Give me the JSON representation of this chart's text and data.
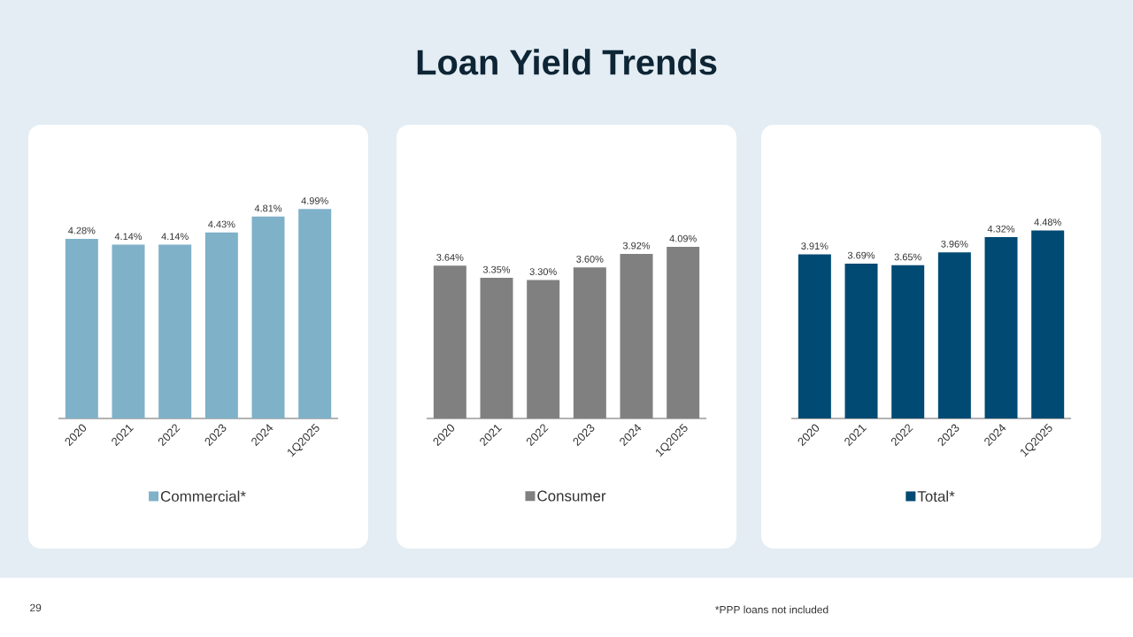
{
  "chart_data": [
    {
      "type": "bar",
      "categories": [
        "2020",
        "2021",
        "2022",
        "2023",
        "2024",
        "1Q2025"
      ],
      "series": [
        {
          "name": "Commercial*",
          "color": "#7fb1c9",
          "values": [
            4.28,
            4.14,
            4.14,
            4.43,
            4.81,
            4.99
          ],
          "value_labels": [
            "4.28%",
            "4.14%",
            "4.14%",
            "4.43%",
            "4.81%",
            "4.99%"
          ]
        }
      ],
      "legend": "bottom"
    },
    {
      "type": "bar",
      "title": "Loan Yield Trends",
      "categories": [
        "2020",
        "2021",
        "2022",
        "2023",
        "2024",
        "1Q2025"
      ],
      "series": [
        {
          "name": "Consumer",
          "color": "#808080",
          "values": [
            3.64,
            3.35,
            3.3,
            3.6,
            3.92,
            4.09
          ],
          "value_labels": [
            "3.64%",
            "3.35%",
            "3.30%",
            "3.60%",
            "3.92%",
            "4.09%"
          ]
        }
      ],
      "legend": "bottom"
    },
    {
      "type": "bar",
      "categories": [
        "2020",
        "2021",
        "2022",
        "2023",
        "2024",
        "1Q2025"
      ],
      "series": [
        {
          "name": "Total*",
          "color": "#004a73",
          "values": [
            3.91,
            3.69,
            3.65,
            3.96,
            4.32,
            4.48
          ],
          "value_labels": [
            "3.91%",
            "3.69%",
            "3.65%",
            "3.96%",
            "4.32%",
            "4.48%"
          ]
        }
      ],
      "legend": "bottom",
      "annotations": [
        "*PPP loans not included",
        "29"
      ]
    }
  ]
}
